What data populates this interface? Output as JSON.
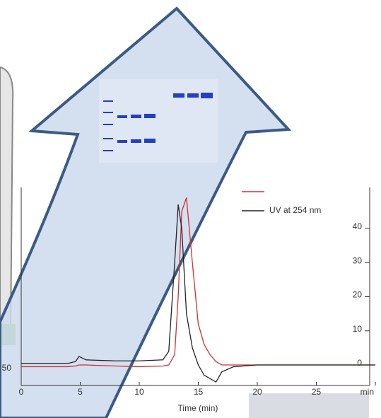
{
  "chart_data": {
    "type": "line",
    "x_label": "Time (min)",
    "left_axis_label": "50",
    "x": [
      0,
      2,
      4,
      4.6,
      4.9,
      5.5,
      8,
      10,
      12,
      12.5,
      13,
      13.3,
      13.6,
      14,
      14.5,
      15,
      15.5,
      16,
      16.5,
      17,
      18,
      20,
      25,
      30
    ],
    "series": [
      {
        "color": "#d03030",
        "values": [
          -0.5,
          -0.5,
          -0.5,
          -0.3,
          0,
          0,
          -0.3,
          -0.5,
          -0.3,
          0,
          3,
          20,
          45,
          49,
          30,
          12,
          6,
          3,
          1,
          0,
          0,
          0,
          0,
          0
        ]
      },
      {
        "name": "UV at 254 nm",
        "color": "#222222",
        "values": [
          0.5,
          0.5,
          0.5,
          1,
          2.5,
          1.5,
          1.2,
          1.2,
          1.5,
          4,
          30,
          47,
          40,
          15,
          5,
          0,
          -3,
          -4,
          -5,
          -2,
          -0.5,
          0,
          0,
          0
        ]
      }
    ],
    "xlim": [
      0,
      30
    ],
    "xticks": [
      0,
      5,
      10,
      15,
      20,
      25,
      {
        "value": 30,
        "label": "min"
      }
    ],
    "ylim": [
      -6,
      52
    ],
    "yticks": [
      0,
      10,
      20,
      30,
      40
    ]
  }
}
